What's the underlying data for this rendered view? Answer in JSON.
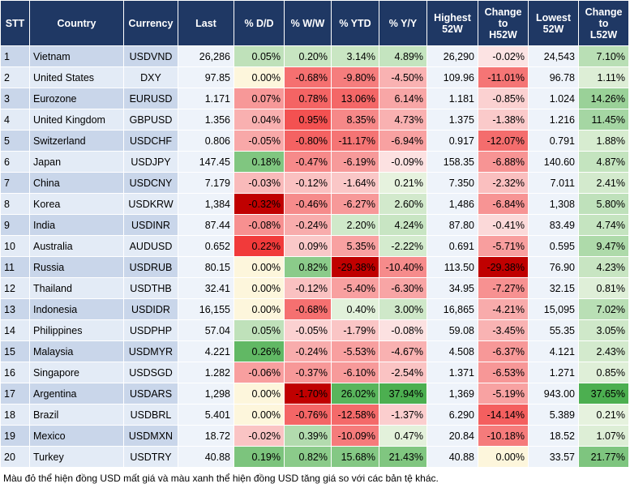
{
  "table": {
    "header": [
      "STT",
      "Country",
      "Currency",
      "Last",
      "% D/D",
      "% W/W",
      "% YTD",
      "% Y/Y",
      "Highest\n52W",
      "Change\nto\nH52W",
      "Lowest\n52W",
      "Change\nto\nL52W"
    ],
    "rows": [
      [
        "1",
        "Vietnam",
        "USDVND",
        "26,286",
        "0.05%",
        "0.20%",
        "3.14%",
        "4.89%",
        "26,290",
        "-0.02%",
        "24,543",
        "7.10%"
      ],
      [
        "2",
        "United States",
        "DXY",
        "97.85",
        "0.00%",
        "-0.68%",
        "-9.80%",
        "-4.50%",
        "109.96",
        "-11.01%",
        "96.78",
        "1.11%"
      ],
      [
        "3",
        "Eurozone",
        "EURUSD",
        "1.171",
        "0.07%",
        "0.78%",
        "13.06%",
        "6.14%",
        "1.181",
        "-0.85%",
        "1.024",
        "14.26%"
      ],
      [
        "4",
        "United Kingdom",
        "GBPUSD",
        "1.356",
        "0.04%",
        "0.95%",
        "8.35%",
        "4.73%",
        "1.375",
        "-1.38%",
        "1.216",
        "11.45%"
      ],
      [
        "5",
        "Switzerland",
        "USDCHF",
        "0.806",
        "-0.05%",
        "-0.80%",
        "-11.17%",
        "-6.94%",
        "0.917",
        "-12.07%",
        "0.791",
        "1.88%"
      ],
      [
        "6",
        "Japan",
        "USDJPY",
        "147.45",
        "0.18%",
        "-0.47%",
        "-6.19%",
        "-0.09%",
        "158.35",
        "-6.88%",
        "140.60",
        "4.87%"
      ],
      [
        "7",
        "China",
        "USDCNY",
        "7.179",
        "-0.03%",
        "-0.12%",
        "-1.64%",
        "0.21%",
        "7.350",
        "-2.32%",
        "7.011",
        "2.41%"
      ],
      [
        "8",
        "Korea",
        "USDKRW",
        "1,384",
        "-0.32%",
        "-0.46%",
        "-6.27%",
        "2.60%",
        "1,486",
        "-6.84%",
        "1,308",
        "5.80%"
      ],
      [
        "9",
        "India",
        "USDINR",
        "87.44",
        "-0.08%",
        "-0.24%",
        "2.20%",
        "4.24%",
        "87.80",
        "-0.41%",
        "83.49",
        "4.74%"
      ],
      [
        "10",
        "Australia",
        "AUDUSD",
        "0.652",
        "0.22%",
        "0.09%",
        "5.35%",
        "-2.22%",
        "0.691",
        "-5.71%",
        "0.595",
        "9.47%"
      ],
      [
        "11",
        "Russia",
        "USDRUB",
        "80.15",
        "0.00%",
        "0.82%",
        "-29.38%",
        "-10.40%",
        "113.50",
        "-29.38%",
        "76.90",
        "4.23%"
      ],
      [
        "12",
        "Thailand",
        "USDTHB",
        "32.41",
        "0.00%",
        "-0.12%",
        "-5.40%",
        "-6.30%",
        "34.95",
        "-7.27%",
        "32.15",
        "0.81%"
      ],
      [
        "13",
        "Indonesia",
        "USDIDR",
        "16,155",
        "0.00%",
        "-0.68%",
        "0.40%",
        "3.00%",
        "16,865",
        "-4.21%",
        "15,095",
        "7.02%"
      ],
      [
        "14",
        "Philippines",
        "USDPHP",
        "57.04",
        "0.05%",
        "-0.05%",
        "-1.79%",
        "-0.08%",
        "59.08",
        "-3.45%",
        "55.35",
        "3.05%"
      ],
      [
        "15",
        "Malaysia",
        "USDMYR",
        "4.221",
        "0.26%",
        "-0.24%",
        "-5.53%",
        "-4.67%",
        "4.508",
        "-6.37%",
        "4.121",
        "2.43%"
      ],
      [
        "16",
        "Singapore",
        "USDSGD",
        "1.282",
        "-0.06%",
        "-0.37%",
        "-6.10%",
        "-2.54%",
        "1.371",
        "-6.53%",
        "1.271",
        "0.85%"
      ],
      [
        "17",
        "Argentina",
        "USDARS",
        "1,298",
        "0.00%",
        "-1.70%",
        "26.02%",
        "37.94%",
        "1,369",
        "-5.19%",
        "943.00",
        "37.65%"
      ],
      [
        "18",
        "Brazil",
        "USDBRL",
        "5.401",
        "0.00%",
        "-0.76%",
        "-12.58%",
        "-1.37%",
        "6.290",
        "-14.14%",
        "5.389",
        "0.21%"
      ],
      [
        "19",
        "Mexico",
        "USDMXN",
        "18.72",
        "-0.02%",
        "0.39%",
        "-10.09%",
        "0.47%",
        "20.84",
        "-10.18%",
        "18.52",
        "1.07%"
      ],
      [
        "20",
        "Turkey",
        "USDTRY",
        "40.88",
        "0.19%",
        "0.82%",
        "15.68%",
        "21.43%",
        "40.88",
        "0.00%",
        "33.57",
        "21.77%"
      ]
    ]
  },
  "footer": "Màu đỏ thể hiện đồng USD mất giá và màu xanh thể hiện đồng USD tăng giá so với các bản tệ khác."
}
